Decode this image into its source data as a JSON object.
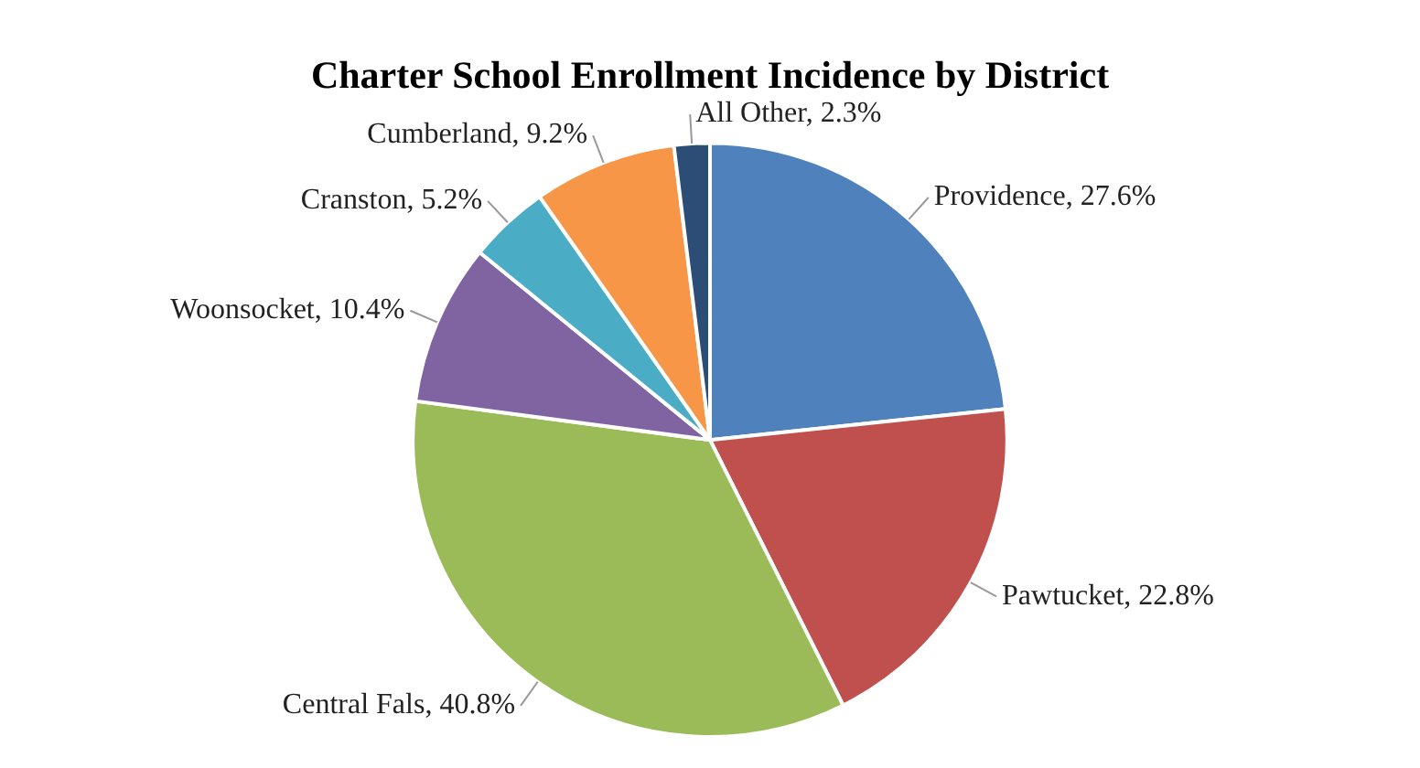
{
  "chart_data": {
    "type": "pie",
    "title": "Charter School Enrollment Incidence by District",
    "categories": [
      "Providence",
      "Pawtucket",
      "Central Fals",
      "Woonsocket",
      "Cranston",
      "Cumberland",
      "All Other"
    ],
    "values": [
      27.6,
      22.8,
      40.8,
      10.4,
      5.2,
      9.2,
      2.3
    ],
    "value_labels": [
      "27.6%",
      "22.8%",
      "40.8%",
      "10.4%",
      "5.2%",
      "9.2%",
      "2.3%"
    ],
    "colors": [
      "#4f81bd",
      "#c0504d",
      "#9bbb59",
      "#8064a2",
      "#4bacc6",
      "#f79646",
      "#2c4d75"
    ],
    "legend": false
  }
}
